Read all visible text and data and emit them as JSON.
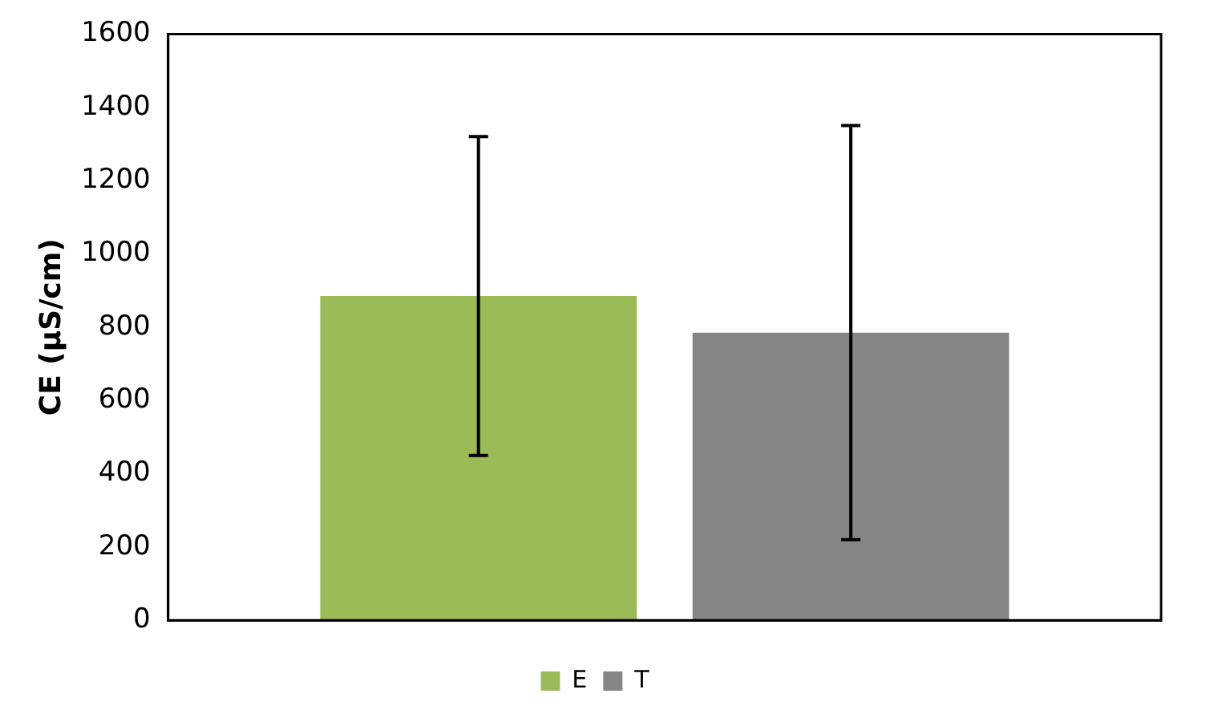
{
  "chart_data": {
    "type": "bar",
    "ylabel": "CE (µS/cm)",
    "categories": [
      null
    ],
    "series": [
      {
        "name": "E",
        "color": "#9bbb59",
        "values": [
          885
        ],
        "errors": [
          [
            450,
            1320
          ]
        ]
      },
      {
        "name": "T",
        "color": "#868686",
        "values": [
          785
        ],
        "errors": [
          [
            220,
            1350
          ]
        ]
      }
    ],
    "ylim": [
      0,
      1600
    ],
    "yticks": [
      0,
      200,
      400,
      600,
      800,
      1000,
      1200,
      1400,
      1600
    ],
    "grid": false,
    "legend": "bottom"
  }
}
